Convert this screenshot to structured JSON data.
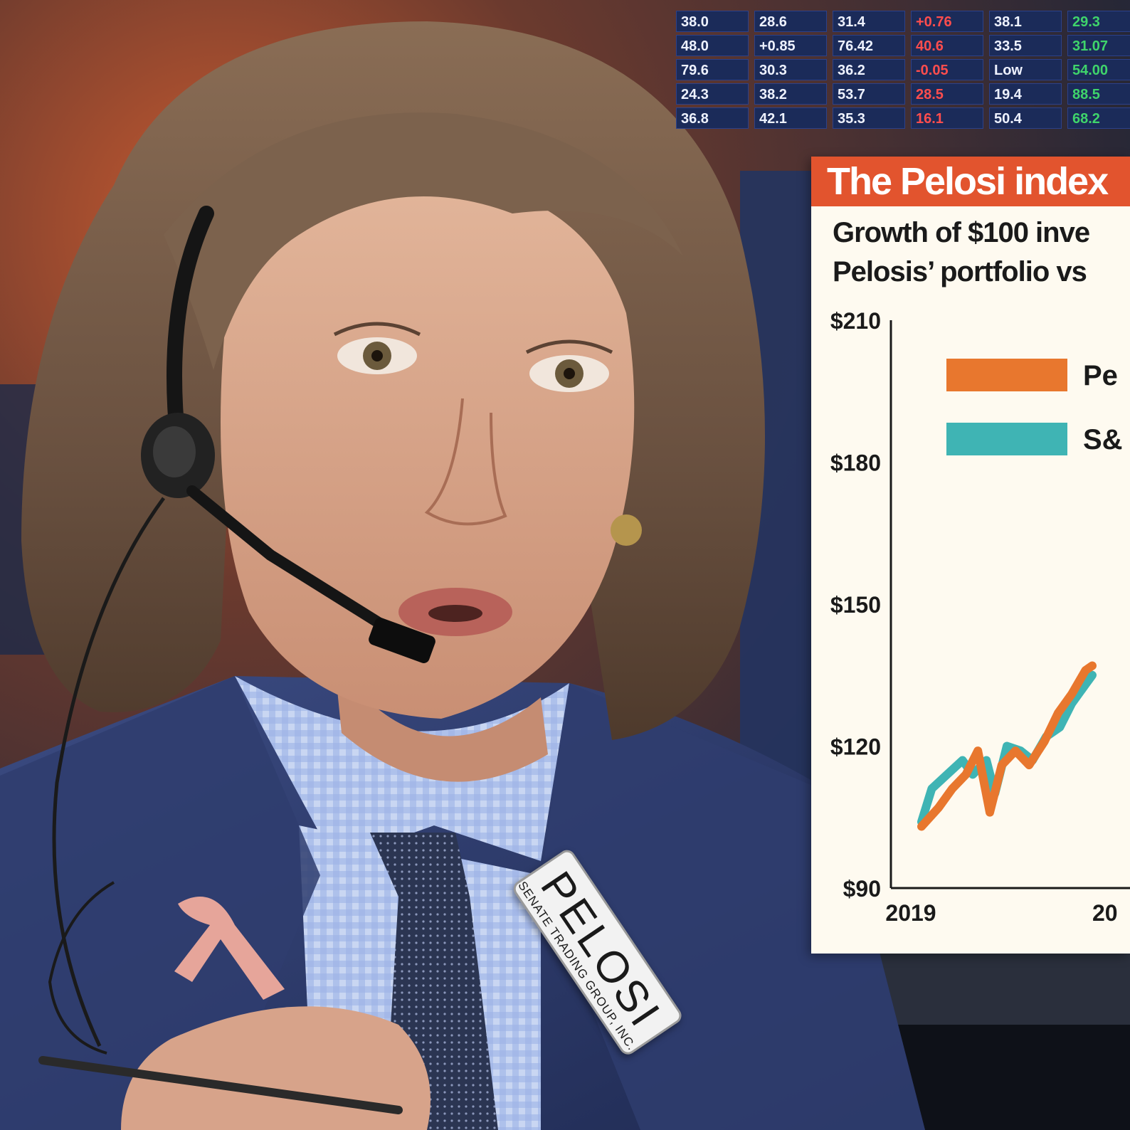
{
  "chart_data": {
    "type": "line",
    "title": "The Pelosi index",
    "subtitle": [
      "Growth of $100 inve",
      "Pelosis’ portfolio vs"
    ],
    "y_tick_labels": [
      "$210",
      "$180",
      "$150",
      "$120",
      "$90"
    ],
    "x_tick_labels": [
      "2019",
      "20"
    ],
    "ylim": [
      90,
      210
    ],
    "legend": {
      "placement": "top-right",
      "entries": [
        {
          "label": "Pe",
          "color": "#e8772e"
        },
        {
          "label": "S&",
          "color": "#3fb4b4"
        }
      ]
    },
    "series": [
      {
        "color": "#e8772e",
        "points": [
          {
            "x": 2019.0,
            "y": 103
          },
          {
            "x": 2019.1,
            "y": 107
          },
          {
            "x": 2019.18,
            "y": 111
          },
          {
            "x": 2019.26,
            "y": 114
          },
          {
            "x": 2019.33,
            "y": 119
          },
          {
            "x": 2019.4,
            "y": 106
          },
          {
            "x": 2019.47,
            "y": 116
          },
          {
            "x": 2019.55,
            "y": 119
          },
          {
            "x": 2019.63,
            "y": 116
          },
          {
            "x": 2019.72,
            "y": 121
          },
          {
            "x": 2019.8,
            "y": 127
          },
          {
            "x": 2019.88,
            "y": 131
          },
          {
            "x": 2019.96,
            "y": 136
          },
          {
            "x": 2020.0,
            "y": 137
          }
        ]
      },
      {
        "color": "#3fb4b4",
        "points": [
          {
            "x": 2019.0,
            "y": 104
          },
          {
            "x": 2019.06,
            "y": 111
          },
          {
            "x": 2019.15,
            "y": 114
          },
          {
            "x": 2019.24,
            "y": 117
          },
          {
            "x": 2019.3,
            "y": 114
          },
          {
            "x": 2019.38,
            "y": 117
          },
          {
            "x": 2019.43,
            "y": 110
          },
          {
            "x": 2019.5,
            "y": 120
          },
          {
            "x": 2019.58,
            "y": 119
          },
          {
            "x": 2019.65,
            "y": 117
          },
          {
            "x": 2019.73,
            "y": 122
          },
          {
            "x": 2019.81,
            "y": 124
          },
          {
            "x": 2019.88,
            "y": 129
          },
          {
            "x": 2019.96,
            "y": 133
          },
          {
            "x": 2020.0,
            "y": 135
          }
        ]
      }
    ]
  },
  "ticker_board": {
    "cells": [
      "38.0",
      "28.6",
      "31.4",
      "+0.76",
      "38.1",
      "29.3",
      "48.0",
      "+0.85",
      "76.42",
      "40.6",
      "33.5",
      "31.07",
      "79.6",
      "30.3",
      "36.2",
      "-0.05",
      "Low",
      "54.00",
      "24.3",
      "38.2",
      "53.7",
      "28.5",
      "19.4",
      "88.5",
      "36.8",
      "42.1",
      "35.3",
      "16.1",
      "50.4",
      "68.2"
    ]
  },
  "badge": {
    "name": "PELOSI",
    "org": "SENATE TRADING GROUP, INC."
  },
  "colors": {
    "title_band": "#e2542e",
    "panel": "#fefaf0",
    "series_orange": "#e8772e",
    "series_teal": "#3fb4b4",
    "ticker_bg": "#1b2b59"
  }
}
